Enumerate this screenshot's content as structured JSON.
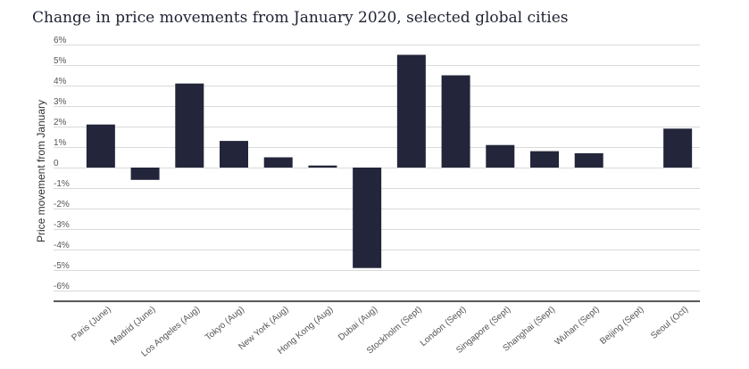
{
  "chart_data": {
    "type": "bar",
    "title": "Change in price movements from January 2020, selected global cities",
    "xlabel": "",
    "ylabel": "Price movement from January",
    "categories": [
      "Paris (June)",
      "Madrid (June)",
      "Los Angeles (Aug)",
      "Tokyo (Aug)",
      "New York (Aug)",
      "Hong Kong (Aug)",
      "Dubai (Aug)",
      "Stockholm (Sept)",
      "London (Sept)",
      "Singapore (Sept)",
      "Shanghai (Sept)",
      "Wuhan (Sept)",
      "Beijing (Sept)",
      "Seoul (Oct)"
    ],
    "values": [
      2.1,
      -0.6,
      4.1,
      1.3,
      0.5,
      0.1,
      -4.9,
      5.5,
      4.5,
      1.1,
      0.8,
      0.7,
      0.0,
      1.9
    ],
    "ylim": [
      -6,
      6
    ],
    "y_ticks": [
      "6%",
      "5%",
      "4%",
      "3%",
      "2%",
      "1%",
      "0",
      "-1%",
      "-2%",
      "-3%",
      "-4%",
      "-5%",
      "-6%"
    ],
    "grid": true,
    "legend": "none",
    "bar_color": "#23263a",
    "grid_color": "#d9d9d9",
    "axis_color": "#222222"
  }
}
